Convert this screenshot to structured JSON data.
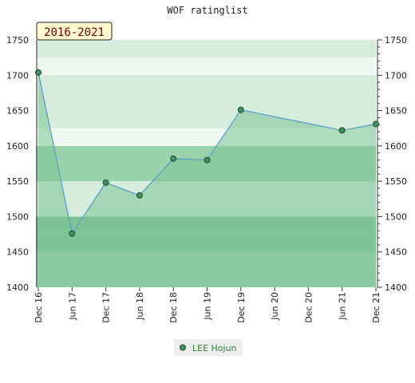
{
  "badge": "2016-2021",
  "colors": {
    "band_dark": "#7cc496",
    "band_mid": "#9ad2ab",
    "band_light": "#d6ecdd",
    "band_pale": "#eef7f0",
    "line": "#5aa0c8",
    "marker": "#3f8f5f",
    "legend_text": "#2e7d32",
    "badge_bg": "#fff8cc"
  },
  "chart_data": {
    "type": "area",
    "title": "WOF ratinglist",
    "ylim": [
      1400,
      1750
    ],
    "yticks": [
      1400,
      1450,
      1500,
      1550,
      1600,
      1650,
      1700,
      1750
    ],
    "xticks": [
      "Dec 16",
      "Jun 17",
      "Dec 17",
      "Jun 18",
      "Dec 18",
      "Jun 19",
      "Dec 19",
      "Jun 20",
      "Dec 20",
      "Jun 21",
      "Dec 21"
    ],
    "grid": true,
    "legend_position": "bottom-center",
    "series": [
      {
        "name": "LEE Hojun",
        "x": [
          "Dec 16",
          "Jun 17",
          "Dec 17",
          "Jun 18",
          "Dec 18",
          "Jun 19",
          "Dec 19",
          "Jun 21",
          "Dec 21"
        ],
        "values": [
          1704,
          1476,
          1548,
          1530,
          1582,
          1580,
          1651,
          1622,
          1631
        ]
      }
    ]
  }
}
